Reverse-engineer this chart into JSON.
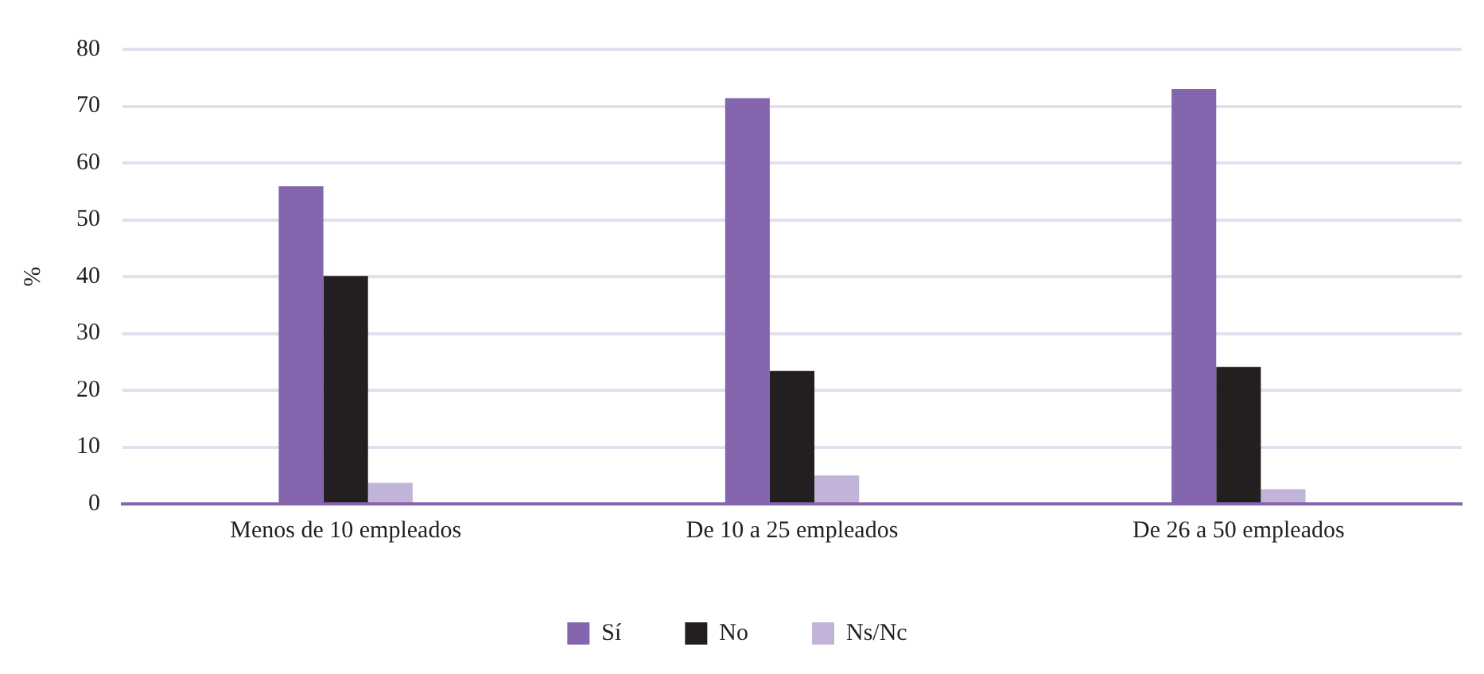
{
  "chart_data": {
    "type": "bar",
    "ylabel": "%",
    "categories": [
      "Menos de 10 empleados",
      "De 10 a 25 empleados",
      "De 26 a 50 empleados"
    ],
    "series": [
      {
        "name": "Sí",
        "color": "#8466ae",
        "values": [
          55.9,
          71.4,
          73.0
        ]
      },
      {
        "name": "No",
        "color": "#231f20",
        "values": [
          40.1,
          23.4,
          24.1
        ]
      },
      {
        "name": "Ns/Nc",
        "color": "#c1b4d8",
        "values": [
          3.7,
          5.0,
          2.6
        ]
      }
    ],
    "ylim": [
      0,
      80
    ],
    "yticks": [
      0,
      10,
      20,
      30,
      40,
      50,
      60,
      70,
      80
    ],
    "grid": "y",
    "legend": "bottom"
  }
}
